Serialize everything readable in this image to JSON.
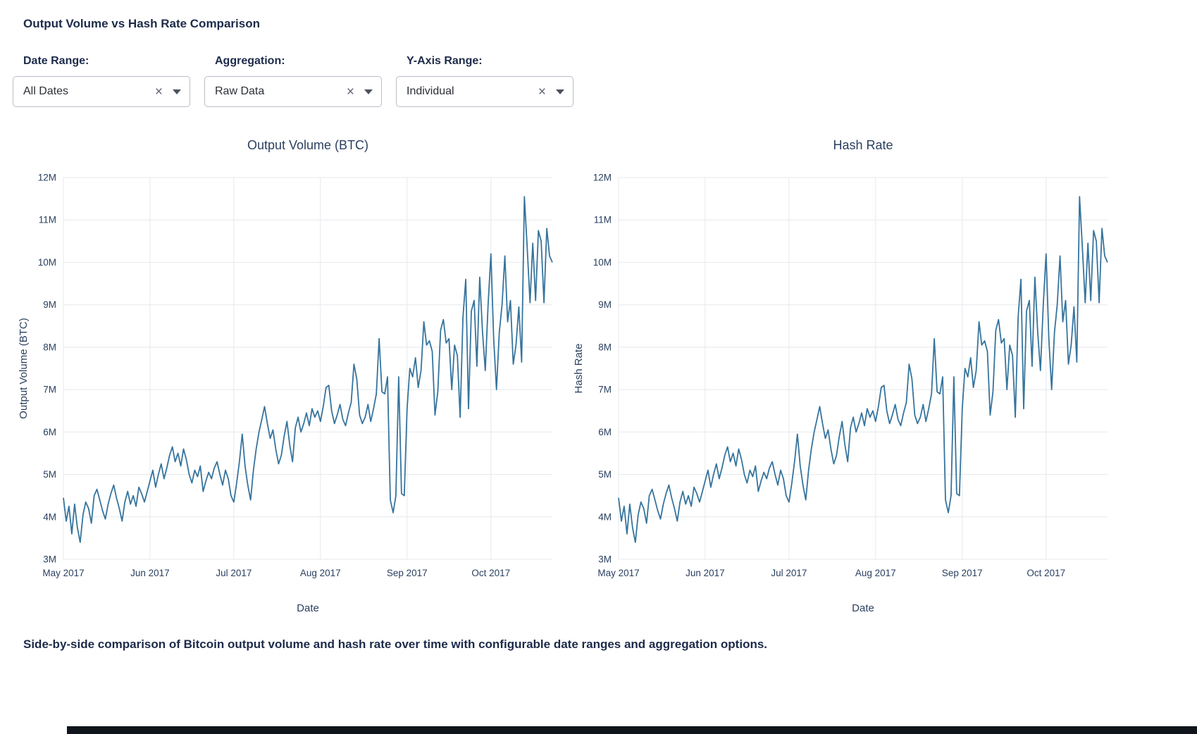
{
  "page": {
    "title": "Output Volume vs Hash Rate Comparison",
    "caption": "Side-by-side comparison of Bitcoin output volume and hash rate over time with configurable date ranges and aggregation options."
  },
  "filters": [
    {
      "label": "Date Range:",
      "value": "All Dates"
    },
    {
      "label": "Aggregation:",
      "value": "Raw Data"
    },
    {
      "label": "Y-Axis Range:",
      "value": "Individual"
    }
  ],
  "colors": {
    "line": "#36749d",
    "grid": "#e5e8ec",
    "chart_text": "#2a3f5f",
    "heading_text": "#1d2b4a",
    "bottom_bar": "#10141b"
  },
  "chart_data": [
    {
      "type": "line",
      "title": "Output Volume (BTC)",
      "xlabel": "Date",
      "ylabel": "Output Volume (BTC)",
      "x_unit": "daily values, day index from 2017-05-01",
      "x_tick_labels": [
        "May 2017",
        "Jun 2017",
        "Jul 2017",
        "Aug 2017",
        "Sep 2017",
        "Oct 2017"
      ],
      "x_tick_positions": [
        0,
        31,
        61,
        92,
        123,
        153
      ],
      "ylim": [
        3000000,
        12000000
      ],
      "ylim_m": [
        3,
        12
      ],
      "y_tick_labels": [
        "3M",
        "4M",
        "5M",
        "6M",
        "7M",
        "8M",
        "9M",
        "10M",
        "11M",
        "12M"
      ],
      "units": "millions",
      "grid": true,
      "legend": false,
      "values": [
        4.45,
        3.9,
        4.25,
        3.6,
        4.3,
        3.75,
        3.4,
        4.05,
        4.35,
        4.2,
        3.85,
        4.5,
        4.65,
        4.4,
        4.15,
        3.95,
        4.3,
        4.55,
        4.75,
        4.45,
        4.2,
        3.9,
        4.35,
        4.6,
        4.3,
        4.5,
        4.25,
        4.7,
        4.55,
        4.35,
        4.6,
        4.85,
        5.1,
        4.7,
        5.0,
        5.25,
        4.9,
        5.15,
        5.45,
        5.65,
        5.3,
        5.5,
        5.2,
        5.6,
        5.35,
        5.0,
        4.8,
        5.1,
        4.95,
        5.2,
        4.6,
        4.85,
        5.05,
        4.9,
        5.15,
        5.3,
        5.0,
        4.75,
        5.1,
        4.9,
        4.5,
        4.35,
        4.8,
        5.3,
        5.95,
        5.2,
        4.75,
        4.4,
        5.1,
        5.6,
        6.0,
        6.3,
        6.6,
        6.2,
        5.85,
        6.05,
        5.6,
        5.25,
        5.45,
        5.9,
        6.25,
        5.7,
        5.3,
        6.1,
        6.35,
        6.0,
        6.2,
        6.45,
        6.15,
        6.55,
        6.35,
        6.5,
        6.25,
        6.6,
        7.05,
        7.1,
        6.5,
        6.2,
        6.4,
        6.65,
        6.3,
        6.15,
        6.45,
        6.7,
        7.6,
        7.25,
        6.4,
        6.2,
        6.35,
        6.65,
        6.25,
        6.55,
        6.9,
        8.2,
        6.95,
        6.9,
        7.3,
        4.4,
        4.1,
        4.5,
        7.3,
        4.55,
        4.5,
        6.55,
        7.5,
        7.3,
        7.75,
        7.05,
        7.45,
        8.6,
        8.05,
        8.15,
        7.9,
        6.4,
        6.95,
        8.4,
        8.65,
        8.1,
        8.2,
        7.0,
        8.05,
        7.8,
        6.35,
        8.7,
        9.6,
        6.55,
        8.85,
        9.1,
        7.55,
        9.65,
        8.35,
        7.45,
        9.0,
        10.2,
        8.2,
        7.0,
        8.35,
        9.0,
        10.15,
        8.6,
        9.1,
        7.6,
        8.05,
        8.95,
        7.65,
        11.55,
        10.35,
        9.05,
        10.45,
        9.1,
        10.75,
        10.5,
        9.05,
        10.8,
        10.15,
        10.0
      ]
    },
    {
      "type": "line",
      "title": "Hash Rate",
      "xlabel": "Date",
      "ylabel": "Hash Rate",
      "x_unit": "daily values, day index from 2017-05-01",
      "x_tick_labels": [
        "May 2017",
        "Jun 2017",
        "Jul 2017",
        "Aug 2017",
        "Sep 2017",
        "Oct 2017"
      ],
      "x_tick_positions": [
        0,
        31,
        61,
        92,
        123,
        153
      ],
      "ylim": [
        3000000,
        12000000
      ],
      "ylim_m": [
        3,
        12
      ],
      "y_tick_labels": [
        "3M",
        "4M",
        "5M",
        "6M",
        "7M",
        "8M",
        "9M",
        "10M",
        "11M",
        "12M"
      ],
      "units": "millions",
      "grid": true,
      "legend": false,
      "values": [
        4.45,
        3.9,
        4.25,
        3.6,
        4.3,
        3.75,
        3.4,
        4.05,
        4.35,
        4.2,
        3.85,
        4.5,
        4.65,
        4.4,
        4.15,
        3.95,
        4.3,
        4.55,
        4.75,
        4.45,
        4.2,
        3.9,
        4.35,
        4.6,
        4.3,
        4.5,
        4.25,
        4.7,
        4.55,
        4.35,
        4.6,
        4.85,
        5.1,
        4.7,
        5.0,
        5.25,
        4.9,
        5.15,
        5.45,
        5.65,
        5.3,
        5.5,
        5.2,
        5.6,
        5.35,
        5.0,
        4.8,
        5.1,
        4.95,
        5.2,
        4.6,
        4.85,
        5.05,
        4.9,
        5.15,
        5.3,
        5.0,
        4.75,
        5.1,
        4.9,
        4.5,
        4.35,
        4.8,
        5.3,
        5.95,
        5.2,
        4.75,
        4.4,
        5.1,
        5.6,
        6.0,
        6.3,
        6.6,
        6.2,
        5.85,
        6.05,
        5.6,
        5.25,
        5.45,
        5.9,
        6.25,
        5.7,
        5.3,
        6.1,
        6.35,
        6.0,
        6.2,
        6.45,
        6.15,
        6.55,
        6.35,
        6.5,
        6.25,
        6.6,
        7.05,
        7.1,
        6.5,
        6.2,
        6.4,
        6.65,
        6.3,
        6.15,
        6.45,
        6.7,
        7.6,
        7.25,
        6.4,
        6.2,
        6.35,
        6.65,
        6.25,
        6.55,
        6.9,
        8.2,
        6.95,
        6.9,
        7.3,
        4.4,
        4.1,
        4.5,
        7.3,
        4.55,
        4.5,
        6.55,
        7.5,
        7.3,
        7.75,
        7.05,
        7.45,
        8.6,
        8.05,
        8.15,
        7.9,
        6.4,
        6.95,
        8.4,
        8.65,
        8.1,
        8.2,
        7.0,
        8.05,
        7.8,
        6.35,
        8.7,
        9.6,
        6.55,
        8.85,
        9.1,
        7.55,
        9.65,
        8.35,
        7.45,
        9.0,
        10.2,
        8.2,
        7.0,
        8.35,
        9.0,
        10.15,
        8.6,
        9.1,
        7.6,
        8.05,
        8.95,
        7.65,
        11.55,
        10.35,
        9.05,
        10.45,
        9.1,
        10.75,
        10.5,
        9.05,
        10.8,
        10.15,
        10.0
      ]
    }
  ]
}
